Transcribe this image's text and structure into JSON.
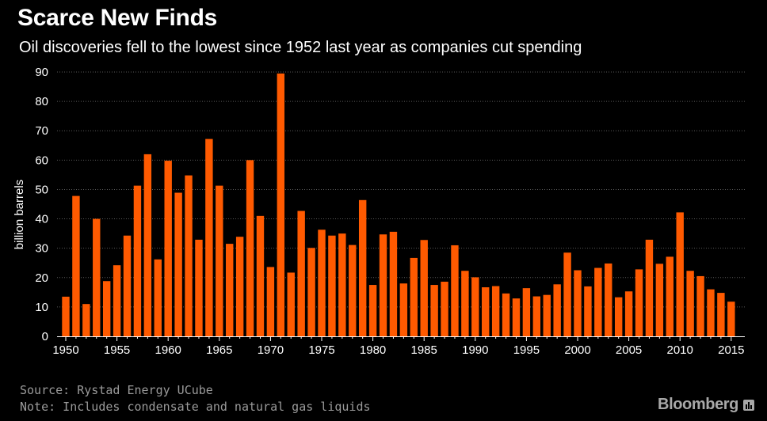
{
  "header": {
    "title": "Scarce New Finds",
    "subtitle": "Oil discoveries fell to the lowest since 1952 last year as companies cut spending"
  },
  "footer": {
    "source": "Source: Rystad Energy UCube",
    "note": "Note: Includes condensate and natural gas liquids",
    "brand": "Bloomberg"
  },
  "colors": {
    "bar": "#ff5a00",
    "background": "#000000",
    "axis_text": "#ffffff",
    "grid": "#5a5a5a"
  },
  "chart_data": {
    "type": "bar",
    "title": "Scarce New Finds",
    "subtitle": "Oil discoveries fell to the lowest since 1952 last year as companies cut spending",
    "xlabel": "",
    "ylabel": "billion barrels",
    "ylim": [
      0,
      90
    ],
    "yticks": [
      0,
      10,
      20,
      30,
      40,
      50,
      60,
      70,
      80,
      90
    ],
    "xticks": [
      1950,
      1955,
      1960,
      1965,
      1970,
      1975,
      1980,
      1985,
      1990,
      1995,
      2000,
      2005,
      2010,
      2015
    ],
    "grid": "horizontal dotted",
    "categories": [
      1950,
      1951,
      1952,
      1953,
      1954,
      1955,
      1956,
      1957,
      1958,
      1959,
      1960,
      1961,
      1962,
      1963,
      1964,
      1965,
      1966,
      1967,
      1968,
      1969,
      1970,
      1971,
      1972,
      1973,
      1974,
      1975,
      1976,
      1977,
      1978,
      1979,
      1980,
      1981,
      1982,
      1983,
      1984,
      1985,
      1986,
      1987,
      1988,
      1989,
      1990,
      1991,
      1992,
      1993,
      1994,
      1995,
      1996,
      1997,
      1998,
      1999,
      2000,
      2001,
      2002,
      2003,
      2004,
      2005,
      2006,
      2007,
      2008,
      2009,
      2010,
      2011,
      2012,
      2013,
      2014,
      2015
    ],
    "values": [
      13.5,
      47.8,
      11,
      40,
      18.8,
      24.2,
      34.3,
      51.3,
      62,
      26.2,
      59.8,
      48.9,
      54.8,
      32.9,
      67.2,
      51.3,
      31.5,
      33.9,
      60,
      41,
      23.6,
      89.5,
      21.7,
      42.7,
      30.1,
      36.3,
      34.3,
      35,
      31.1,
      46.4,
      17.5,
      34.7,
      35.6,
      18,
      26.7,
      32.8,
      17.5,
      18.6,
      31,
      22.3,
      20.1,
      16.7,
      17.1,
      14.6,
      12.9,
      16.4,
      13.6,
      14.1,
      17.7,
      28.5,
      22.5,
      17,
      23.3,
      24.8,
      13.3,
      15.3,
      22.8,
      32.9,
      24.7,
      27.1,
      42.2,
      22.3,
      20.5,
      16,
      14.8,
      11.8
    ]
  }
}
